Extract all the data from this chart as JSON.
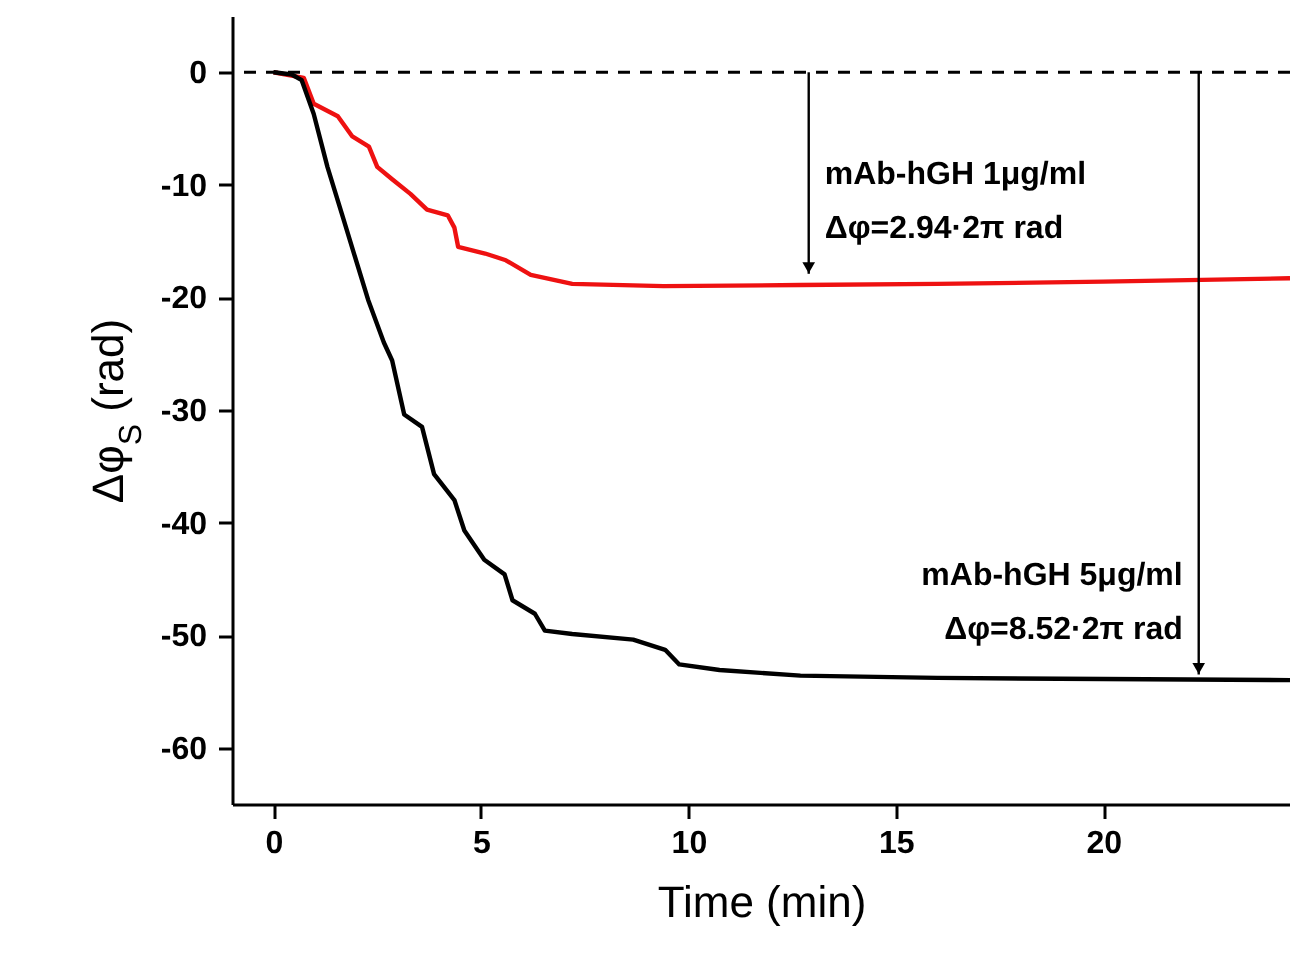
{
  "chart_data": {
    "type": "line",
    "xlabel": "Time (min)",
    "ylabel": "Δφ$_{S}$ (rad)",
    "xlim": [
      -1,
      24.5
    ],
    "xticks": [
      0,
      5,
      10,
      15,
      20
    ],
    "ylim": [
      -65,
      5
    ],
    "yticks": [
      0,
      -10,
      -20,
      -30,
      -40,
      -50,
      -60
    ],
    "grid": false,
    "marker": "none",
    "line_style": "solid",
    "series": [
      {
        "color": "#ee1111",
        "x": [
          0,
          0.73,
          0.97,
          1.55,
          1.9,
          2.3,
          2.5,
          2.86,
          3.3,
          3.7,
          4.2,
          4.36,
          4.45,
          5.1,
          5.6,
          6.2,
          7.2,
          9.4,
          12.7,
          16,
          20,
          24.5
        ],
        "values": [
          0,
          -0.5,
          -2.8,
          -3.9,
          -5.7,
          -6.6,
          -8.4,
          -9.5,
          -10.8,
          -12.2,
          -12.7,
          -13.8,
          -15.5,
          -16.1,
          -16.7,
          -18.0,
          -18.8,
          -19.0,
          -18.9,
          -18.8,
          -18.6,
          -18.3
        ]
      },
      {
        "color": "#000000",
        "x": [
          0,
          0.44,
          0.68,
          0.97,
          1.3,
          1.65,
          1.94,
          2.28,
          2.66,
          2.86,
          3.15,
          3.58,
          3.87,
          4.36,
          4.6,
          5.08,
          5.57,
          5.76,
          6.3,
          6.54,
          7.2,
          8.67,
          9.44,
          9.78,
          10.75,
          12.7,
          16,
          20,
          24.5
        ],
        "values": [
          0,
          -0.2,
          -0.7,
          -3.7,
          -8.4,
          -12.6,
          -16.1,
          -20.2,
          -24,
          -25.6,
          -30.4,
          -31.5,
          -35.7,
          -38,
          -40.7,
          -43.3,
          -44.6,
          -46.9,
          -48.1,
          -49.6,
          -49.9,
          -50.4,
          -51.3,
          -52.6,
          -53.1,
          -53.6,
          -53.8,
          -53.9,
          -54.0
        ]
      }
    ],
    "ref_lines": [
      {
        "axis": "y",
        "value": 0,
        "color": "#000000",
        "line_style": "dashed"
      }
    ],
    "annotations": [
      {
        "text": "mAb-hGH 1μg/ml\nΔφ=2.94·2π rad",
        "x": 12.9,
        "y": -17.9
      },
      {
        "text": "mAb-hGH 5μg/ml\nΔφ=8.52·2π rad",
        "x": 22.3,
        "y": -53.5
      }
    ]
  }
}
